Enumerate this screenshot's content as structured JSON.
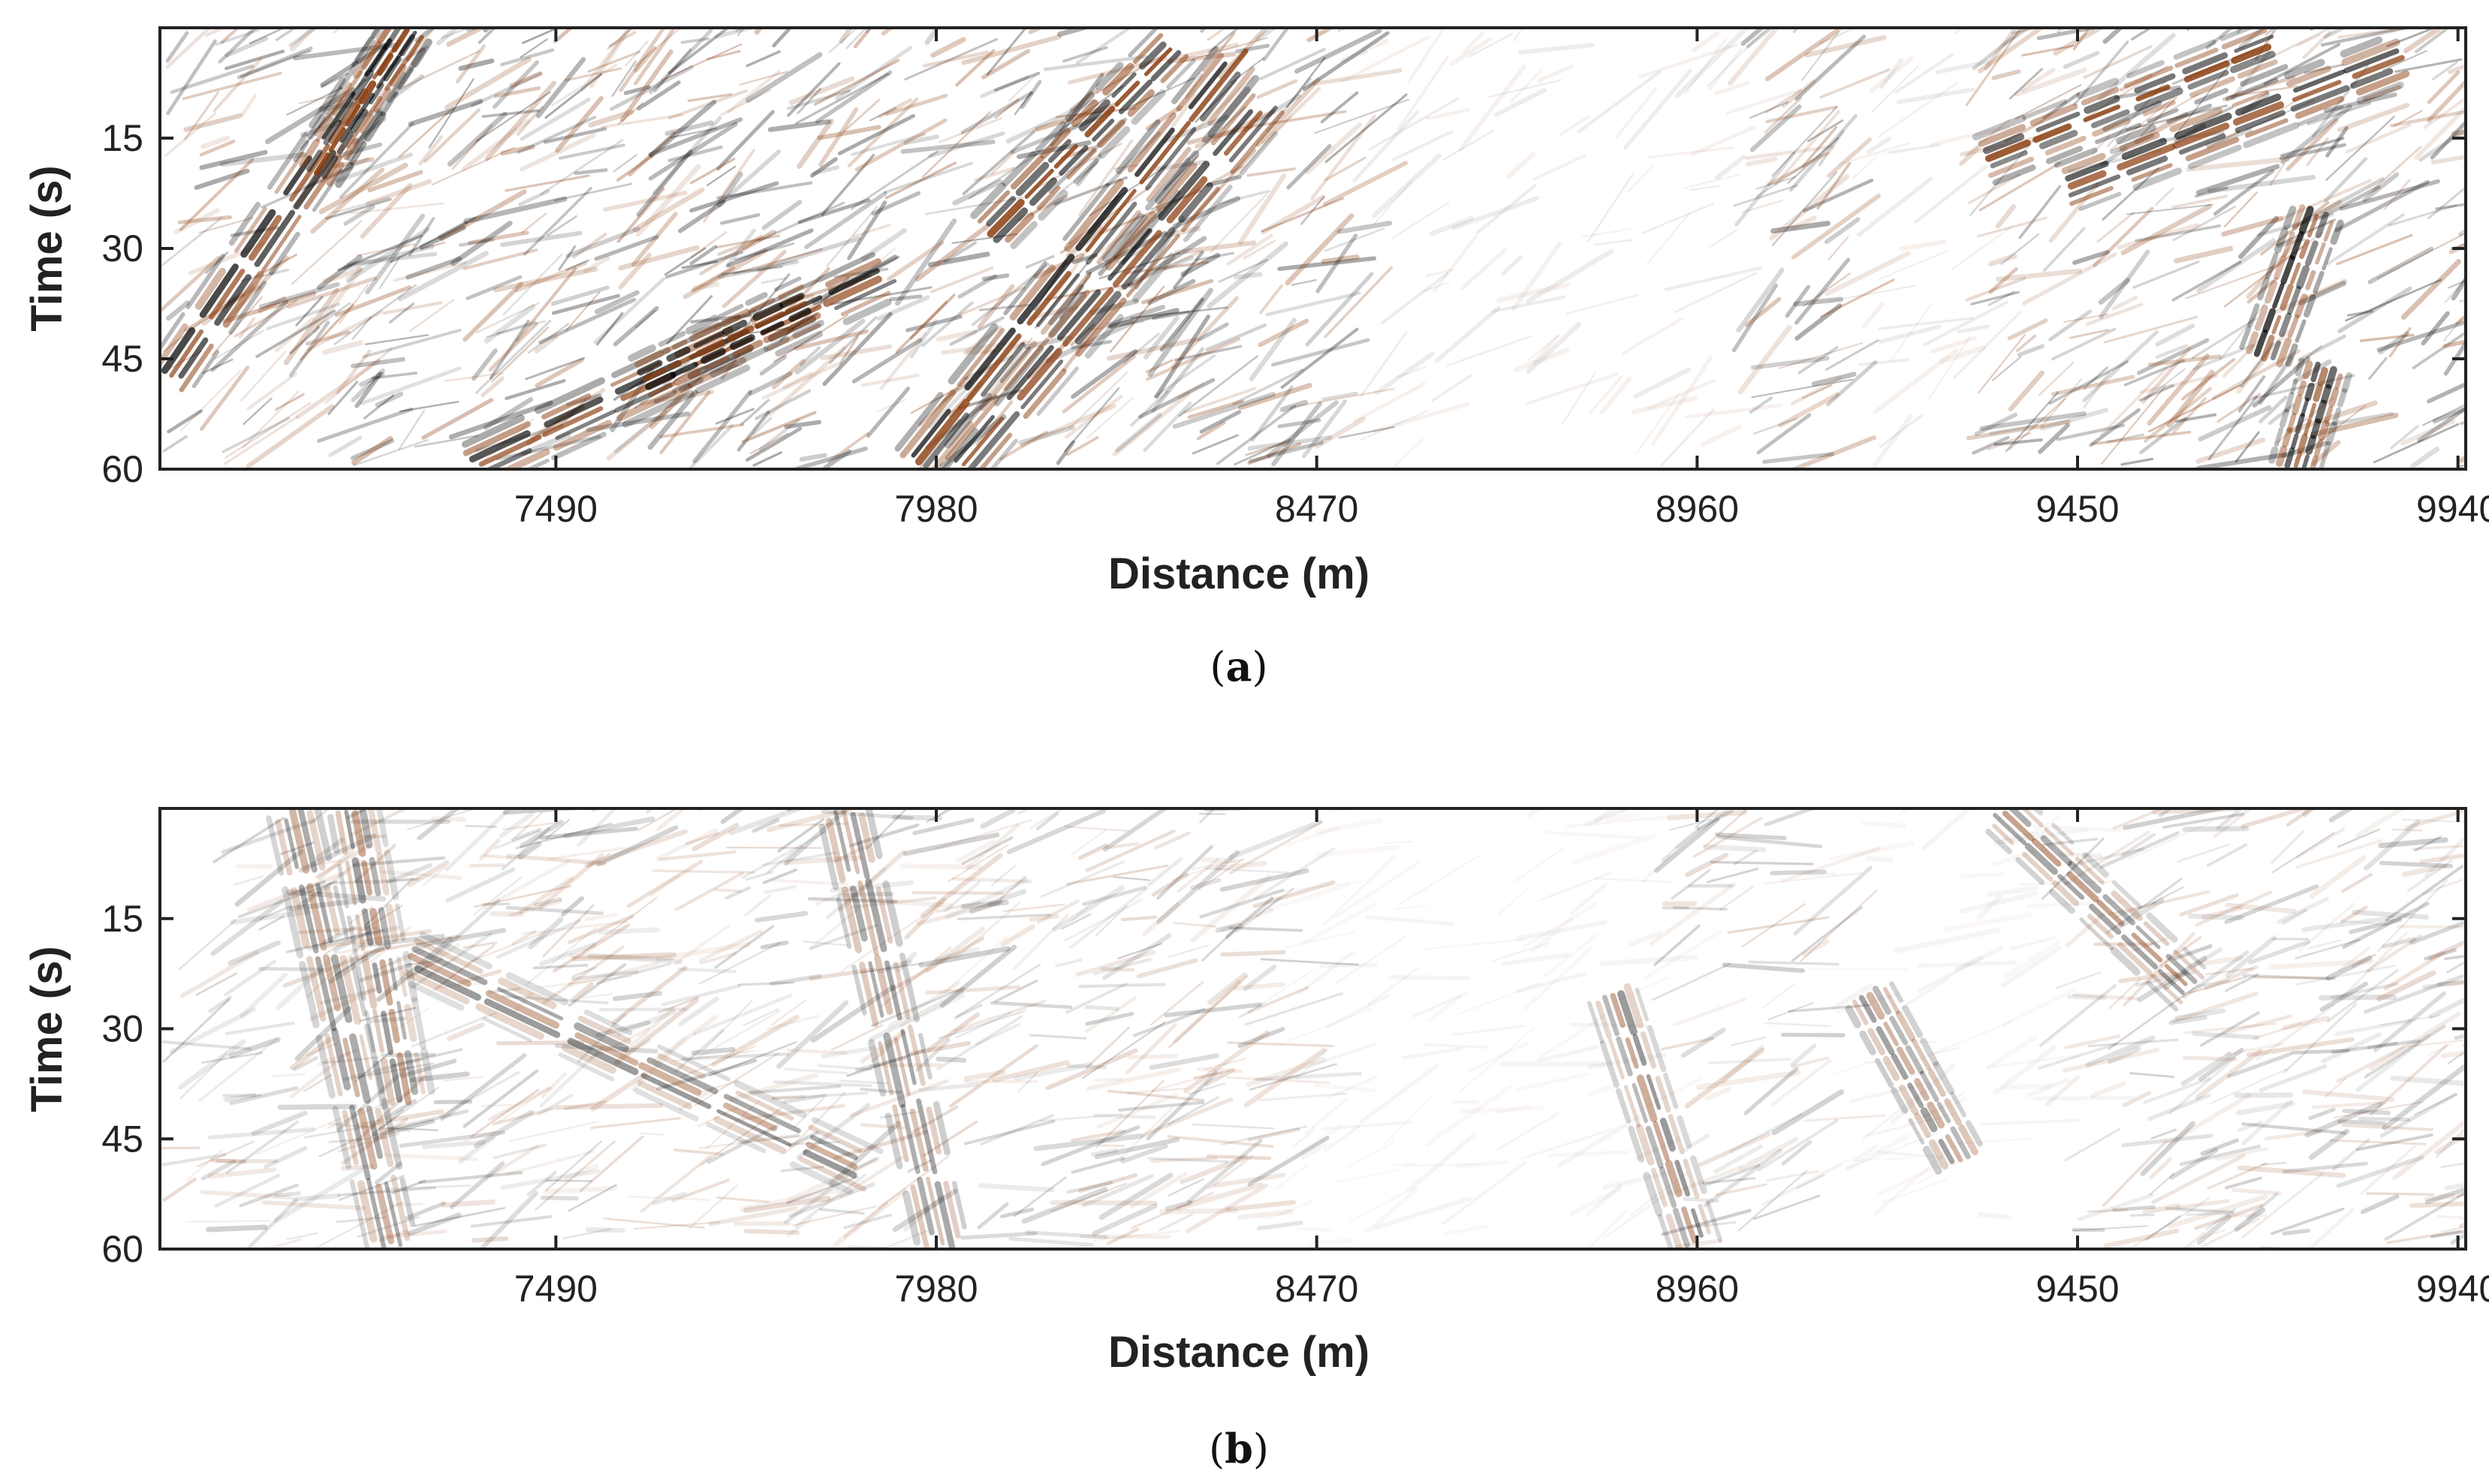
{
  "chart_data": [
    {
      "type": "heatmap",
      "caption": "a",
      "xlabel": "Distance (m)",
      "ylabel": "Time (s)",
      "xticks": [
        7490,
        7980,
        8470,
        8960,
        9450,
        9940
      ],
      "yticks": [
        15,
        30,
        45,
        60
      ],
      "xlim": [
        6980,
        9950
      ],
      "ylim": [
        60,
        0
      ],
      "y_direction": "down",
      "colormap": [
        "#000000",
        "#ffffff",
        "#8a3d0f"
      ],
      "amplitude_scale": 1.0,
      "events": [
        {
          "x0": 6990,
          "t0": 48,
          "x1": 7300,
          "t1": 0
        },
        {
          "x0": 7180,
          "t0": 20,
          "x1": 7300,
          "t1": 0
        },
        {
          "x0": 7380,
          "t0": 60,
          "x1": 7930,
          "t1": 33
        },
        {
          "x0": 7600,
          "t0": 48,
          "x1": 7820,
          "t1": 37
        },
        {
          "x0": 7950,
          "t0": 60,
          "x1": 8380,
          "t1": 3
        },
        {
          "x0": 8010,
          "t0": 60,
          "x1": 8410,
          "t1": 10
        },
        {
          "x0": 8050,
          "t0": 28,
          "x1": 8290,
          "t1": 2
        },
        {
          "x0": 9330,
          "t0": 18,
          "x1": 9710,
          "t1": 2
        },
        {
          "x0": 9430,
          "t0": 22,
          "x1": 9870,
          "t1": 4
        },
        {
          "x0": 9730,
          "t0": 60,
          "x1": 9770,
          "t1": 46
        },
        {
          "x0": 9690,
          "t0": 45,
          "x1": 9760,
          "t1": 25
        }
      ],
      "quiet_zones": [
        [
          8500,
          9000
        ],
        [
          9130,
          9300
        ]
      ]
    },
    {
      "type": "heatmap",
      "caption": "b",
      "xlabel": "Distance (m)",
      "ylabel": "Time (s)",
      "xticks": [
        7490,
        7980,
        8470,
        8960,
        9450,
        9940
      ],
      "yticks": [
        15,
        30,
        45,
        60
      ],
      "xlim": [
        6980,
        9950
      ],
      "ylim": [
        60,
        0
      ],
      "y_direction": "down",
      "colormap": [
        "#000000",
        "#ffffff",
        "#8a3d0f"
      ],
      "amplitude_scale": 0.55,
      "events": [
        {
          "x0": 7150,
          "t0": 0,
          "x1": 7280,
          "t1": 60
        },
        {
          "x0": 7230,
          "t0": 0,
          "x1": 7300,
          "t1": 40
        },
        {
          "x0": 7860,
          "t0": 0,
          "x1": 7990,
          "t1": 60
        },
        {
          "x0": 7300,
          "t0": 20,
          "x1": 7900,
          "t1": 50
        },
        {
          "x0": 8850,
          "t0": 25,
          "x1": 8960,
          "t1": 60
        },
        {
          "x0": 9350,
          "t0": 0,
          "x1": 9600,
          "t1": 25
        },
        {
          "x0": 9180,
          "t0": 25,
          "x1": 9300,
          "t1": 48
        }
      ],
      "quiet_zones": [
        [
          8400,
          8900
        ],
        [
          9100,
          9400
        ]
      ]
    }
  ]
}
